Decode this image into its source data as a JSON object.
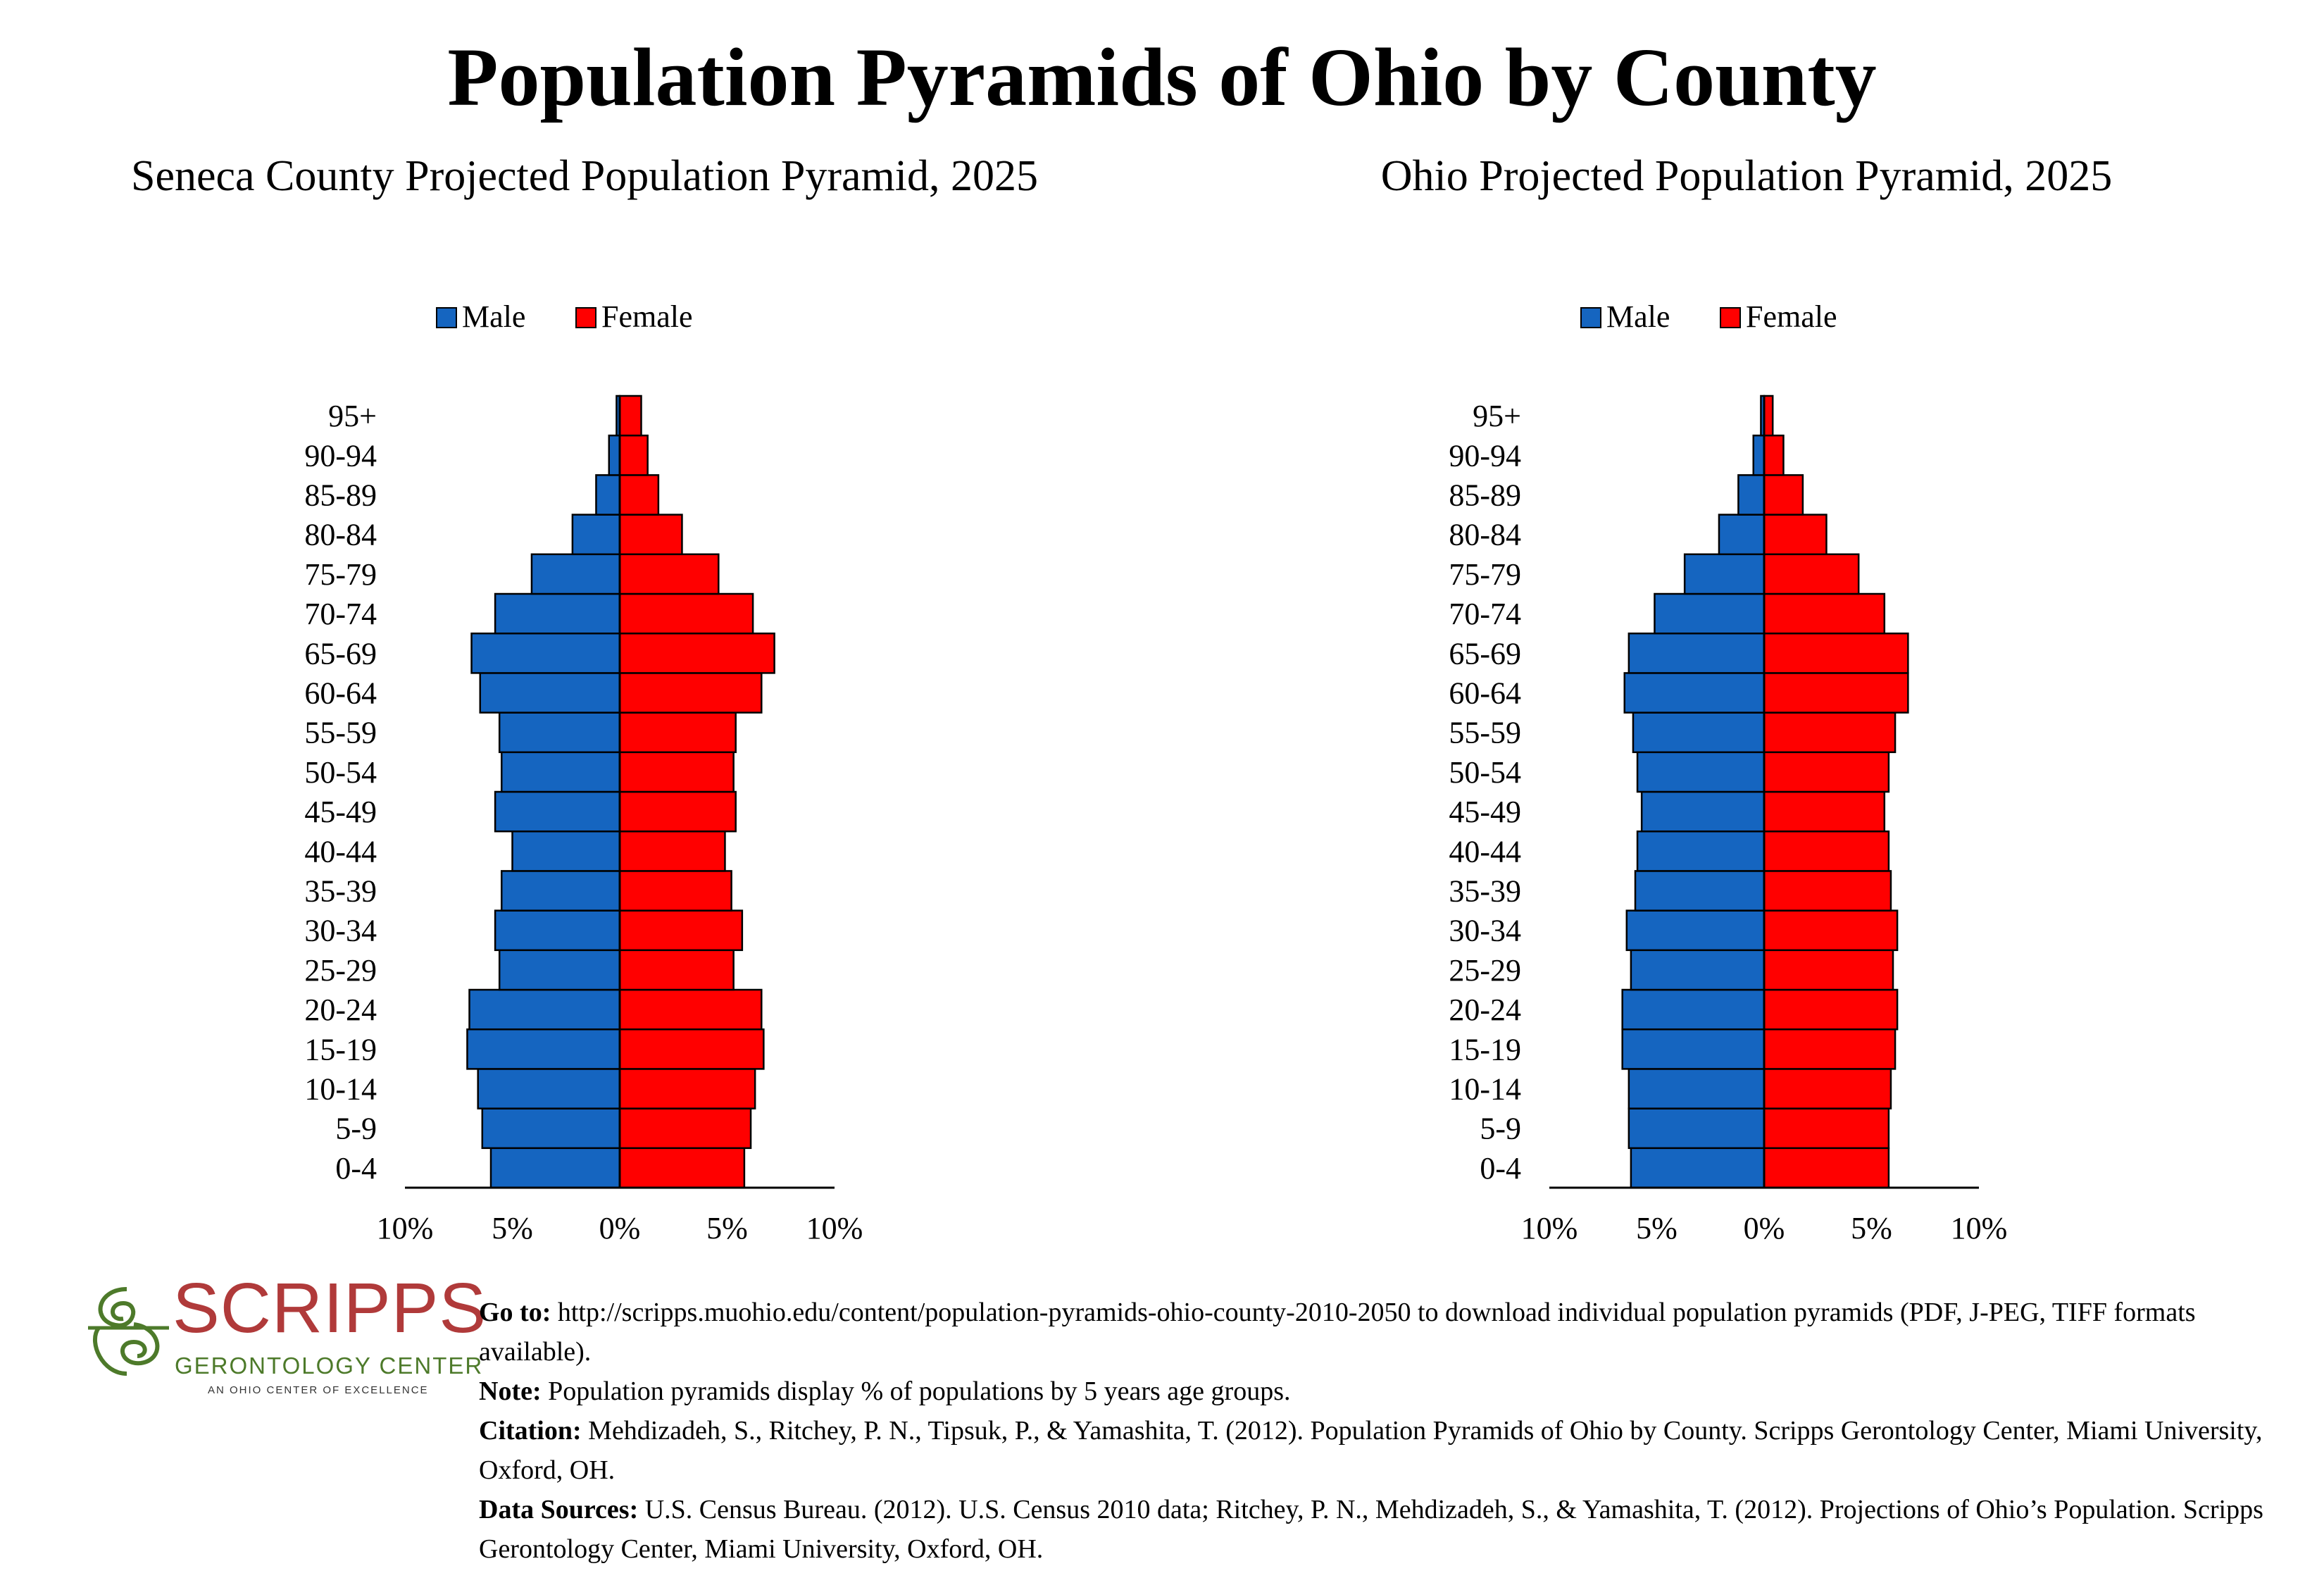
{
  "main_title": "Population Pyramids of Ohio by County",
  "colors": {
    "male": "#1565c0",
    "female": "#ff0000",
    "logo_red": "#b03a3a",
    "logo_green": "#4d7a2a"
  },
  "chart_data": [
    {
      "type": "bar",
      "orientation": "horizontal-pyramid",
      "title": "Seneca County Projected Population Pyramid, 2025",
      "legend": {
        "placement": "top-center"
      },
      "categories": [
        "0-4",
        "5-9",
        "10-14",
        "15-19",
        "20-24",
        "25-29",
        "30-34",
        "35-39",
        "40-44",
        "45-49",
        "50-54",
        "55-59",
        "60-64",
        "65-69",
        "70-74",
        "75-79",
        "80-84",
        "85-89",
        "90-94",
        "95+"
      ],
      "series": [
        {
          "name": "Male",
          "values": [
            6.0,
            6.4,
            6.6,
            7.1,
            7.0,
            5.6,
            5.8,
            5.5,
            5.0,
            5.8,
            5.5,
            5.6,
            6.5,
            6.9,
            5.8,
            4.1,
            2.2,
            1.1,
            0.5,
            0.15
          ]
        },
        {
          "name": "Female",
          "values": [
            5.8,
            6.1,
            6.3,
            6.7,
            6.6,
            5.3,
            5.7,
            5.2,
            4.9,
            5.4,
            5.3,
            5.4,
            6.6,
            7.2,
            6.2,
            4.6,
            2.9,
            1.8,
            1.3,
            1.0
          ]
        }
      ],
      "xlim": [
        -10,
        10
      ],
      "x_ticks": [
        "10%",
        "5%",
        "0%",
        "5%",
        "10%"
      ],
      "grid": false
    },
    {
      "type": "bar",
      "orientation": "horizontal-pyramid",
      "title": "Ohio Projected Population Pyramid, 2025",
      "legend": {
        "placement": "top-center"
      },
      "categories": [
        "0-4",
        "5-9",
        "10-14",
        "15-19",
        "20-24",
        "25-29",
        "30-34",
        "35-39",
        "40-44",
        "45-49",
        "50-54",
        "55-59",
        "60-64",
        "65-69",
        "70-74",
        "75-79",
        "80-84",
        "85-89",
        "90-94",
        "95+"
      ],
      "series": [
        {
          "name": "Male",
          "values": [
            6.2,
            6.3,
            6.3,
            6.6,
            6.6,
            6.2,
            6.4,
            6.0,
            5.9,
            5.7,
            5.9,
            6.1,
            6.5,
            6.3,
            5.1,
            3.7,
            2.1,
            1.2,
            0.5,
            0.15
          ]
        },
        {
          "name": "Female",
          "values": [
            5.8,
            5.8,
            5.9,
            6.1,
            6.2,
            6.0,
            6.2,
            5.9,
            5.8,
            5.6,
            5.8,
            6.1,
            6.7,
            6.7,
            5.6,
            4.4,
            2.9,
            1.8,
            0.9,
            0.4
          ]
        }
      ],
      "xlim": [
        -10,
        10
      ],
      "x_ticks": [
        "10%",
        "5%",
        "0%",
        "5%",
        "10%"
      ],
      "grid": false
    }
  ],
  "logo": {
    "name": "SCRIPPS",
    "subtitle": "GERONTOLOGY CENTER",
    "tagline": "AN OHIO CENTER OF EXCELLENCE"
  },
  "notes": {
    "goto_label": "Go to:",
    "goto_text": " http://scripps.muohio.edu/content/population-pyramids-ohio-county-2010-2050 to download individual population pyramids (PDF, J-PEG, TIFF formats available).",
    "note_label": "Note:",
    "note_text": " Population pyramids display % of populations by 5 years age groups.",
    "citation_label": "Citation:",
    "citation_text": " Mehdizadeh, S., Ritchey, P. N., Tipsuk, P., & Yamashita, T. (2012). Population Pyramids of Ohio by County. Scripps Gerontology Center, Miami University, Oxford, OH.",
    "sources_label": "Data Sources:",
    "sources_text": " U.S. Census Bureau. (2012). U.S. Census 2010 data; Ritchey, P. N., Mehdizadeh, S., & Yamashita, T. (2012). Projections of Ohio’s Population. Scripps Gerontology Center, Miami University, Oxford, OH."
  }
}
